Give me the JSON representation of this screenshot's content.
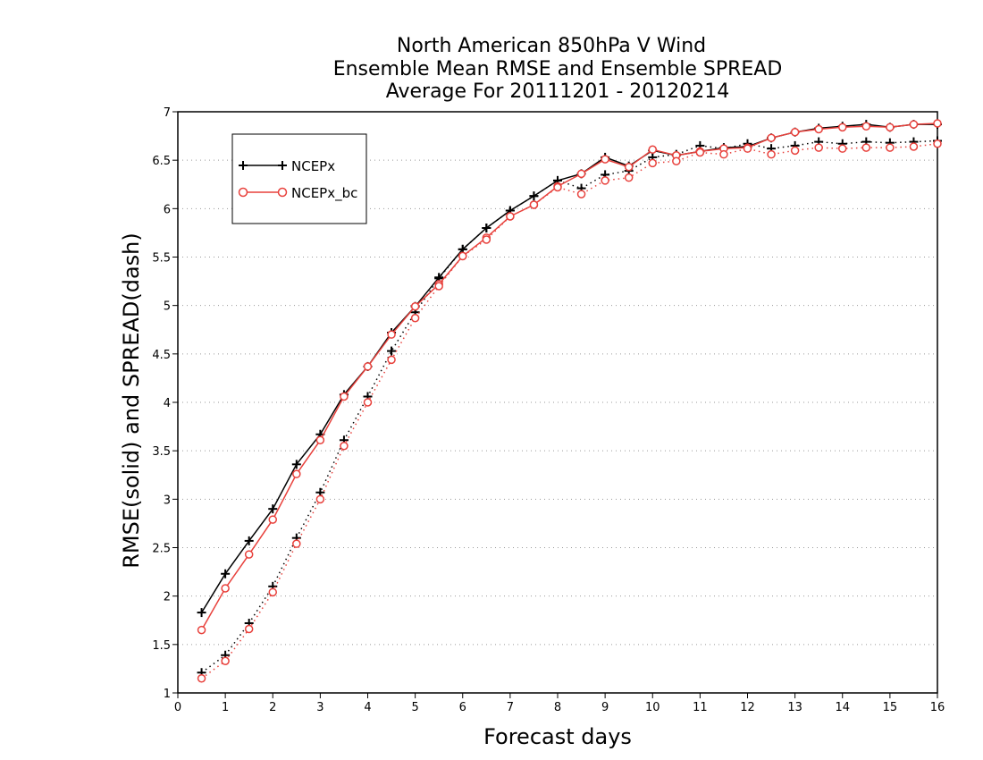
{
  "chart_data": {
    "type": "line",
    "title": [
      "North American 850hPa V Wind",
      "Ensemble Mean RMSE and Ensemble SPREAD",
      "Average For 20111201 - 20120214"
    ],
    "xlabel": "Forecast days",
    "ylabel": "RMSE(solid) and SPREAD(dash)",
    "xlim": [
      0,
      16
    ],
    "ylim": [
      1,
      7
    ],
    "xticks": [
      0,
      1,
      2,
      3,
      4,
      5,
      6,
      7,
      8,
      9,
      10,
      11,
      12,
      13,
      14,
      15,
      16
    ],
    "yticks": [
      1,
      1.5,
      2,
      2.5,
      3,
      3.5,
      4,
      4.5,
      5,
      5.5,
      6,
      6.5,
      7
    ],
    "ytick_labels": [
      "1",
      "1.5",
      "2",
      "2.5",
      "3",
      "3.5",
      "4",
      "4.5",
      "5",
      "5.5",
      "6",
      "6.5",
      "7"
    ],
    "grid": "horizontal-dotted",
    "legend_position": "top-left",
    "x": [
      0.5,
      1,
      1.5,
      2,
      2.5,
      3,
      3.5,
      4,
      4.5,
      5,
      5.5,
      6,
      6.5,
      7,
      7.5,
      8,
      8.5,
      9,
      9.5,
      10,
      10.5,
      11,
      11.5,
      12,
      12.5,
      13,
      13.5,
      14,
      14.5,
      15,
      15.5,
      16
    ],
    "series": [
      {
        "name": "NCEPx",
        "color": "#000000",
        "marker": "plus",
        "rmse": [
          1.83,
          2.23,
          2.57,
          2.9,
          3.36,
          3.67,
          4.08,
          4.37,
          4.72,
          4.99,
          5.29,
          5.58,
          5.8,
          5.98,
          6.13,
          6.29,
          6.36,
          6.53,
          6.44,
          6.6,
          6.55,
          6.59,
          6.63,
          6.64,
          6.73,
          6.79,
          6.83,
          6.85,
          6.87,
          6.84,
          6.87,
          6.87
        ],
        "spread": [
          1.21,
          1.39,
          1.72,
          2.1,
          2.6,
          3.07,
          3.61,
          4.06,
          4.53,
          4.93,
          5.28,
          5.58,
          5.8,
          5.98,
          6.13,
          6.29,
          6.21,
          6.35,
          6.39,
          6.53,
          6.56,
          6.65,
          6.62,
          6.67,
          6.62,
          6.65,
          6.69,
          6.67,
          6.69,
          6.68,
          6.69,
          6.7
        ]
      },
      {
        "name": "NCEPx_bc",
        "color": "#e8413c",
        "marker": "circle",
        "rmse": [
          1.65,
          2.08,
          2.43,
          2.79,
          3.26,
          3.61,
          4.06,
          4.37,
          4.7,
          4.99,
          5.22,
          5.51,
          5.7,
          5.92,
          6.04,
          6.23,
          6.36,
          6.51,
          6.43,
          6.61,
          6.55,
          6.59,
          6.62,
          6.63,
          6.73,
          6.79,
          6.82,
          6.84,
          6.85,
          6.84,
          6.87,
          6.88
        ],
        "spread": [
          1.15,
          1.33,
          1.66,
          2.04,
          2.54,
          3.0,
          3.55,
          4.0,
          4.44,
          4.87,
          5.2,
          5.51,
          5.68,
          5.92,
          6.04,
          6.22,
          6.15,
          6.29,
          6.32,
          6.47,
          6.49,
          6.58,
          6.56,
          6.62,
          6.56,
          6.6,
          6.63,
          6.62,
          6.63,
          6.63,
          6.64,
          6.67
        ]
      }
    ]
  }
}
